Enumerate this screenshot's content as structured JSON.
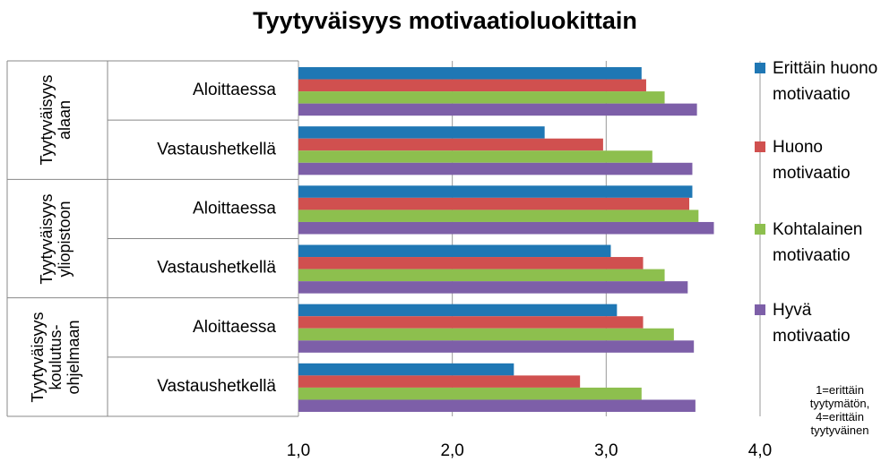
{
  "chart_data": {
    "type": "bar",
    "orientation": "horizontal",
    "title": "Tyytyväisyys motivaatioluokittain",
    "groups": [
      {
        "name": "Tyytyväisyys\nalaan",
        "categories": [
          "Aloittaessa",
          "Vastaushetkellä"
        ]
      },
      {
        "name": "Tyytyväisyys\nyliopistoon",
        "categories": [
          "Aloittaessa",
          "Vastaushetkellä"
        ]
      },
      {
        "name": "Tyytyväisyys\nkoulutus-\nohjelmaan",
        "categories": [
          "Aloittaessa",
          "Vastaushetkellä"
        ]
      }
    ],
    "series": [
      {
        "name": "Erittäin huono motivaatio",
        "color": "#1f77b4",
        "values": [
          3.23,
          2.6,
          3.56,
          3.03,
          3.07,
          2.4
        ]
      },
      {
        "name": "Huono motivaatio",
        "color": "#d0504f",
        "values": [
          3.26,
          2.98,
          3.54,
          3.24,
          3.24,
          2.83
        ]
      },
      {
        "name": "Kohtalainen motivaatio",
        "color": "#8dbf4e",
        "values": [
          3.38,
          3.3,
          3.6,
          3.38,
          3.44,
          3.23
        ]
      },
      {
        "name": "Hyvä motivaatio",
        "color": "#7d5fa8",
        "values": [
          3.59,
          3.56,
          3.7,
          3.53,
          3.57,
          3.58
        ]
      }
    ],
    "xlim": [
      1,
      4
    ],
    "xticks": [
      {
        "value": 1,
        "label": "1,0"
      },
      {
        "value": 2,
        "label": "2,0"
      },
      {
        "value": 3,
        "label": "3,0"
      },
      {
        "value": 4,
        "label": "4,0"
      }
    ],
    "grid": true,
    "note": "1=erittäin\ntyytymätön,\n4=erittäin\ntyytyväinen"
  }
}
